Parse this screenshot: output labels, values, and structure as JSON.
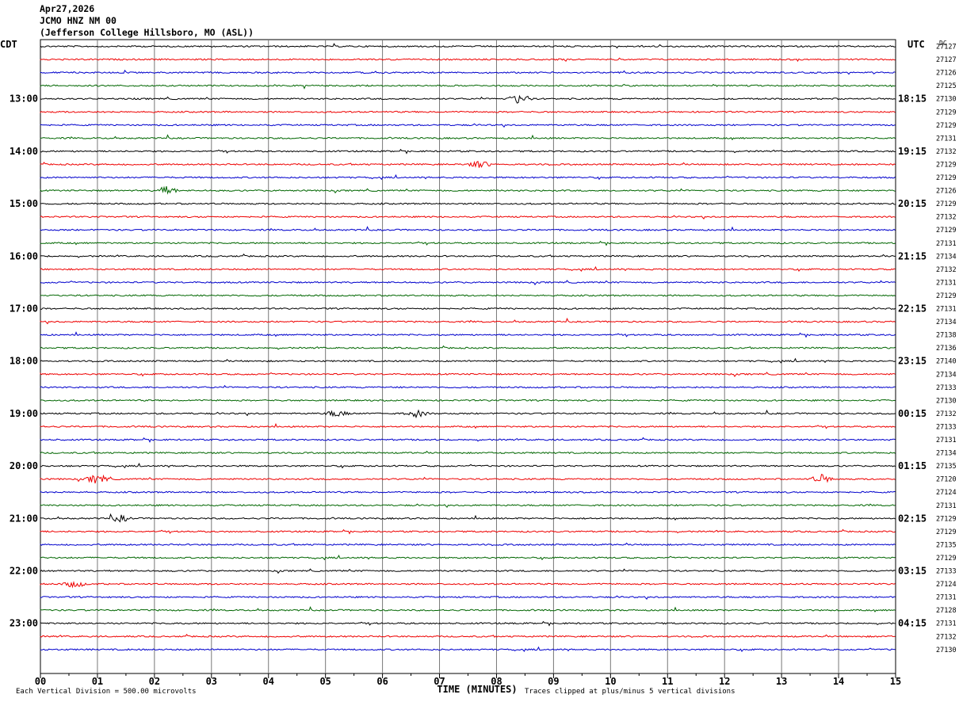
{
  "header": {
    "date": "Apr27,2026",
    "station": "JCMO HNZ NM 00",
    "location": "(Jefferson College Hillsboro, MO (ASL))"
  },
  "chart_data": {
    "type": "line",
    "title": "JCMO HNZ NM 00",
    "left_axis_label": "CDT",
    "right_axis_label": "UTC",
    "dc_label": "DC",
    "xlabel": "TIME (MINUTES)",
    "xlim": [
      0,
      15
    ],
    "x_ticks": [
      "00",
      "01",
      "02",
      "03",
      "04",
      "05",
      "06",
      "07",
      "08",
      "09",
      "10",
      "11",
      "12",
      "13",
      "14",
      "15"
    ],
    "trace_colors": [
      "#000000",
      "#ee0000",
      "#0000cc",
      "#006600"
    ],
    "left_hour_labels": [
      "13:00",
      "14:00",
      "15:00",
      "16:00",
      "17:00",
      "18:00",
      "19:00",
      "20:00",
      "21:00",
      "22:00",
      "23:00"
    ],
    "right_hour_labels": [
      "18:15",
      "19:15",
      "20:15",
      "21:15",
      "22:15",
      "23:15",
      "00:15",
      "01:15",
      "02:15",
      "03:15",
      "04:15"
    ],
    "hour_label_first_trace": 4,
    "traces_per_hour": 4,
    "dc_offsets": [
      27127,
      27127,
      27126,
      27125,
      27130,
      27129,
      27129,
      27131,
      27132,
      27129,
      27129,
      27126,
      27129,
      27132,
      27129,
      27131,
      27134,
      27132,
      27131,
      27129,
      27131,
      27134,
      27138,
      27136,
      27140,
      27134,
      27133,
      27130,
      27132,
      27133,
      27131,
      27134,
      27135,
      27120,
      27124,
      27131,
      27129,
      27129,
      27135,
      27129,
      27133,
      27124,
      27131,
      27128,
      27131,
      27132,
      27130
    ],
    "events": [
      {
        "trace": 4,
        "minute": 8.4,
        "amplitude": 6
      },
      {
        "trace": 9,
        "minute": 7.7,
        "amplitude": 4
      },
      {
        "trace": 11,
        "minute": 2.2,
        "amplitude": 5
      },
      {
        "trace": 28,
        "minute": 5.2,
        "amplitude": 4
      },
      {
        "trace": 28,
        "minute": 6.6,
        "amplitude": 4
      },
      {
        "trace": 33,
        "minute": 1.0,
        "amplitude": 6
      },
      {
        "trace": 33,
        "minute": 13.7,
        "amplitude": 5
      },
      {
        "trace": 36,
        "minute": 1.4,
        "amplitude": 4
      },
      {
        "trace": 41,
        "minute": 0.6,
        "amplitude": 4
      }
    ],
    "footer_left": "Each Vertical Division =  500.00 microvolts",
    "footer_right": "Traces clipped at plus/minus 5 vertical divisions"
  }
}
